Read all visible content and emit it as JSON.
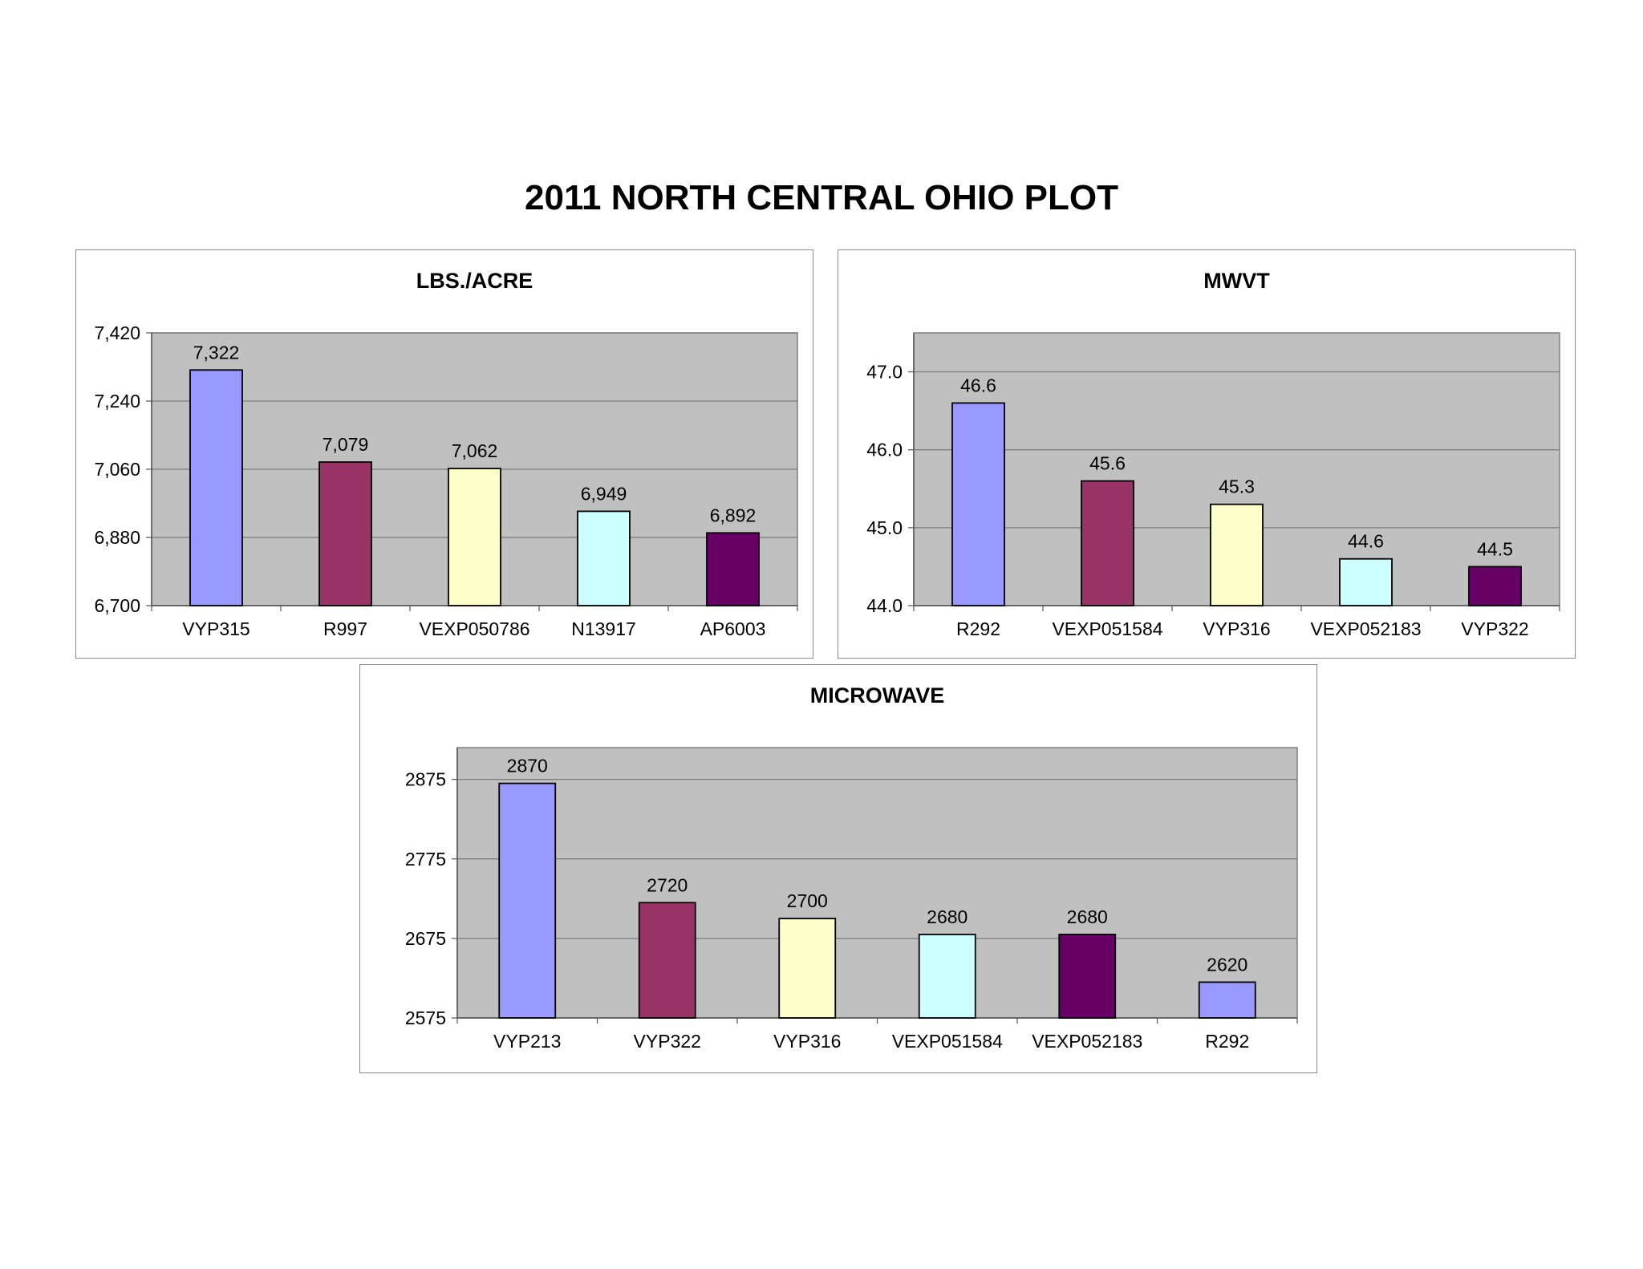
{
  "page": {
    "title": "2011 NORTH CENTRAL OHIO PLOT"
  },
  "chart_data": [
    {
      "type": "bar",
      "title": "LBS./ACRE",
      "categories": [
        "VYP315",
        "R997",
        "VEXP050786",
        "N13917",
        "AP6003"
      ],
      "values": [
        7322,
        7079,
        7062,
        6949,
        6892
      ],
      "value_labels": [
        "7,322",
        "7,079",
        "7,062",
        "6,949",
        "6,892"
      ],
      "colors": [
        "#9999FF",
        "#993366",
        "#FFFFCC",
        "#CCFFFF",
        "#660066"
      ],
      "ylim": [
        6700,
        7420
      ],
      "yticks": [
        6700,
        6880,
        7060,
        7240,
        7420
      ],
      "ytick_labels": [
        "6,700",
        "6,880",
        "7,060",
        "7,240",
        "7,420"
      ],
      "grid": true,
      "plot_background": "#C0C0C0"
    },
    {
      "type": "bar",
      "title": "MWVT",
      "categories": [
        "R292",
        "VEXP051584",
        "VYP316",
        "VEXP052183",
        "VYP322"
      ],
      "values": [
        46.6,
        45.6,
        45.3,
        44.6,
        44.5
      ],
      "value_labels": [
        "46.6",
        "45.6",
        "45.3",
        "44.6",
        "44.5"
      ],
      "colors": [
        "#9999FF",
        "#993366",
        "#FFFFCC",
        "#CCFFFF",
        "#660066"
      ],
      "ylim": [
        44.0,
        47.5
      ],
      "yticks": [
        44.0,
        45.0,
        46.0,
        47.0
      ],
      "ytick_labels": [
        "44.0",
        "45.0",
        "46.0",
        "47.0"
      ],
      "grid": true,
      "plot_background": "#C0C0C0"
    },
    {
      "type": "bar",
      "title": "MICROWAVE",
      "categories": [
        "VYP213",
        "VYP322",
        "VYP316",
        "VEXP051584",
        "VEXP052183",
        "R292"
      ],
      "values": [
        2870,
        2720,
        2700,
        2680,
        2680,
        2620
      ],
      "value_labels": [
        "2870",
        "2720",
        "2700",
        "2680",
        "2680",
        "2620"
      ],
      "colors": [
        "#9999FF",
        "#993366",
        "#FFFFCC",
        "#CCFFFF",
        "#660066",
        "#9999FF"
      ],
      "ylim": [
        2575,
        2915
      ],
      "yticks": [
        2575,
        2675,
        2775,
        2875
      ],
      "ytick_labels": [
        "2575",
        "2675",
        "2775",
        "2875"
      ],
      "grid": true,
      "plot_background": "#C0C0C0"
    }
  ]
}
